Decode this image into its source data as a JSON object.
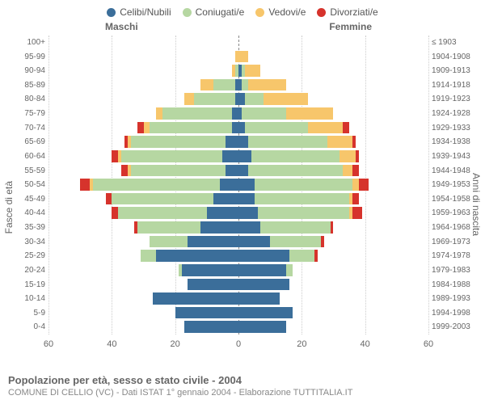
{
  "legend": [
    {
      "label": "Celibi/Nubili",
      "color": "#3b6e9a"
    },
    {
      "label": "Coniugati/e",
      "color": "#b6d7a2"
    },
    {
      "label": "Vedovi/e",
      "color": "#f7c66b"
    },
    {
      "label": "Divorziati/e",
      "color": "#d6332c"
    }
  ],
  "header_male": "Maschi",
  "header_female": "Femmine",
  "y_axis_left": "Fasce di età",
  "y_axis_right": "Anni di nascita",
  "x_ticks": [
    60,
    40,
    20,
    0,
    20,
    40,
    60
  ],
  "x_max": 60,
  "colors": {
    "single": "#3b6e9a",
    "married": "#b6d7a2",
    "widowed": "#f7c66b",
    "divorced": "#d6332c"
  },
  "rows": [
    {
      "age": "100+",
      "birth": "≤ 1903",
      "m": [
        0,
        0,
        0,
        0
      ],
      "f": [
        0,
        0,
        0,
        0
      ]
    },
    {
      "age": "95-99",
      "birth": "1904-1908",
      "m": [
        0,
        0,
        1,
        0
      ],
      "f": [
        0,
        0,
        3,
        0
      ]
    },
    {
      "age": "90-94",
      "birth": "1909-1913",
      "m": [
        0,
        1,
        1,
        0
      ],
      "f": [
        1,
        1,
        5,
        0
      ]
    },
    {
      "age": "85-89",
      "birth": "1914-1918",
      "m": [
        1,
        7,
        4,
        0
      ],
      "f": [
        1,
        2,
        12,
        0
      ]
    },
    {
      "age": "80-84",
      "birth": "1919-1923",
      "m": [
        1,
        13,
        3,
        0
      ],
      "f": [
        2,
        6,
        14,
        0
      ]
    },
    {
      "age": "75-79",
      "birth": "1924-1928",
      "m": [
        2,
        22,
        2,
        0
      ],
      "f": [
        1,
        14,
        15,
        0
      ]
    },
    {
      "age": "70-74",
      "birth": "1929-1933",
      "m": [
        2,
        26,
        2,
        2
      ],
      "f": [
        2,
        20,
        11,
        2
      ]
    },
    {
      "age": "65-69",
      "birth": "1934-1938",
      "m": [
        4,
        30,
        1,
        1
      ],
      "f": [
        3,
        25,
        8,
        1
      ]
    },
    {
      "age": "60-64",
      "birth": "1939-1943",
      "m": [
        5,
        32,
        1,
        2
      ],
      "f": [
        4,
        28,
        5,
        1
      ]
    },
    {
      "age": "55-59",
      "birth": "1944-1948",
      "m": [
        4,
        30,
        1,
        2
      ],
      "f": [
        3,
        30,
        3,
        2
      ]
    },
    {
      "age": "50-54",
      "birth": "1949-1953",
      "m": [
        6,
        40,
        1,
        3
      ],
      "f": [
        5,
        31,
        2,
        3
      ]
    },
    {
      "age": "45-49",
      "birth": "1954-1958",
      "m": [
        8,
        32,
        0,
        2
      ],
      "f": [
        5,
        30,
        1,
        2
      ]
    },
    {
      "age": "40-44",
      "birth": "1959-1963",
      "m": [
        10,
        28,
        0,
        2
      ],
      "f": [
        6,
        29,
        1,
        3
      ]
    },
    {
      "age": "35-39",
      "birth": "1964-1968",
      "m": [
        12,
        20,
        0,
        1
      ],
      "f": [
        7,
        22,
        0,
        1
      ]
    },
    {
      "age": "30-34",
      "birth": "1969-1973",
      "m": [
        16,
        12,
        0,
        0
      ],
      "f": [
        10,
        16,
        0,
        1
      ]
    },
    {
      "age": "25-29",
      "birth": "1974-1978",
      "m": [
        26,
        5,
        0,
        0
      ],
      "f": [
        16,
        8,
        0,
        1
      ]
    },
    {
      "age": "20-24",
      "birth": "1979-1983",
      "m": [
        18,
        1,
        0,
        0
      ],
      "f": [
        15,
        2,
        0,
        0
      ]
    },
    {
      "age": "15-19",
      "birth": "1984-1988",
      "m": [
        16,
        0,
        0,
        0
      ],
      "f": [
        16,
        0,
        0,
        0
      ]
    },
    {
      "age": "10-14",
      "birth": "1989-1993",
      "m": [
        27,
        0,
        0,
        0
      ],
      "f": [
        13,
        0,
        0,
        0
      ]
    },
    {
      "age": "5-9",
      "birth": "1994-1998",
      "m": [
        20,
        0,
        0,
        0
      ],
      "f": [
        17,
        0,
        0,
        0
      ]
    },
    {
      "age": "0-4",
      "birth": "1999-2003",
      "m": [
        17,
        0,
        0,
        0
      ],
      "f": [
        15,
        0,
        0,
        0
      ]
    }
  ],
  "footer_title": "Popolazione per età, sesso e stato civile - 2004",
  "footer_sub": "COMUNE DI CELLIO (VC) - Dati ISTAT 1° gennaio 2004 - Elaborazione TUTTITALIA.IT"
}
